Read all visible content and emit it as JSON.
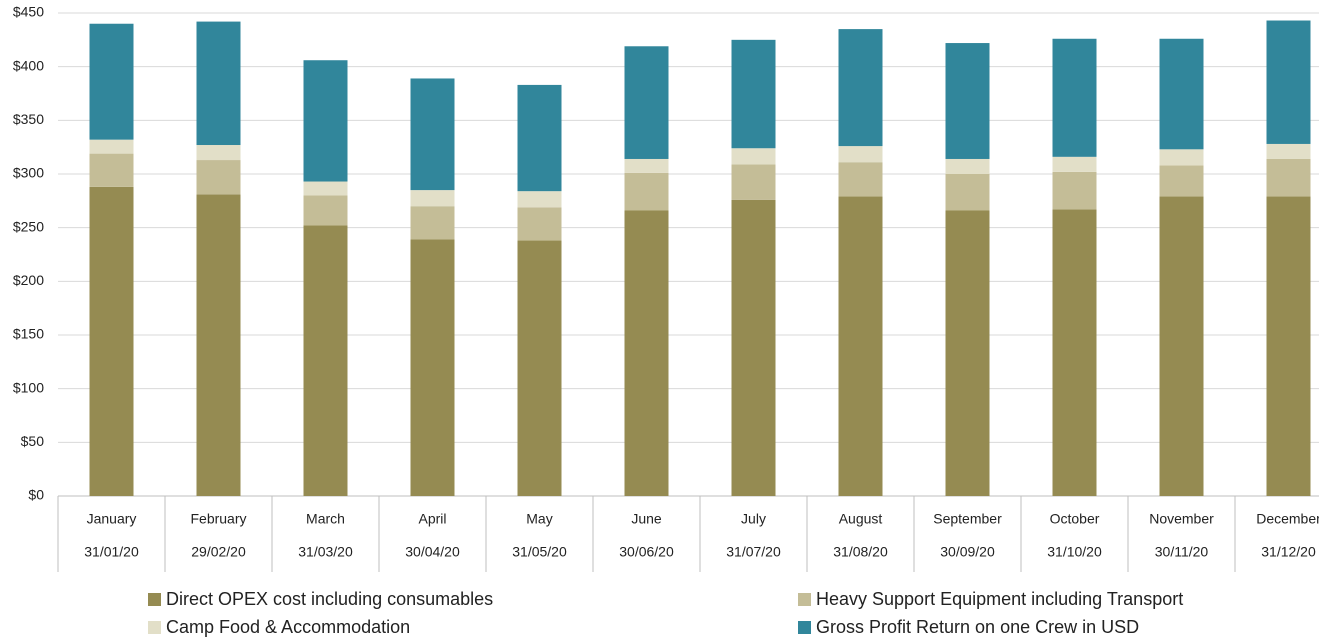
{
  "chart_data": {
    "type": "stacked_bar",
    "categories": [
      "January",
      "February",
      "March",
      "April",
      "May",
      "June",
      "July",
      "August",
      "September",
      "October",
      "November",
      "December"
    ],
    "dates": [
      "31/01/20",
      "29/02/20",
      "31/03/20",
      "30/04/20",
      "31/05/20",
      "30/06/20",
      "31/07/20",
      "31/08/20",
      "30/09/20",
      "31/10/20",
      "30/11/20",
      "31/12/20"
    ],
    "series": [
      {
        "name": "Direct OPEX cost including consumables",
        "color": "#958b52",
        "values": [
          288,
          281,
          252,
          239,
          238,
          266,
          276,
          279,
          266,
          267,
          279,
          279
        ]
      },
      {
        "name": "Heavy Support Equipment including Transport",
        "color": "#c4bd97",
        "values": [
          31,
          32,
          28,
          31,
          31,
          35,
          33,
          32,
          34,
          35,
          29,
          35
        ]
      },
      {
        "name": "Camp Food & Accommodation",
        "color": "#e2dfc8",
        "values": [
          13,
          14,
          13,
          15,
          15,
          13,
          15,
          15,
          14,
          14,
          15,
          14
        ]
      },
      {
        "name": "Gross Profit Return on one Crew in USD",
        "color": "#31869b",
        "values": [
          108,
          115,
          113,
          104,
          99,
          105,
          101,
          109,
          108,
          110,
          103,
          115
        ]
      }
    ],
    "ylim": [
      0,
      450
    ],
    "yticks": [
      {
        "value": 0,
        "label": "$0"
      },
      {
        "value": 50,
        "label": "$50"
      },
      {
        "value": 100,
        "label": "$100"
      },
      {
        "value": 150,
        "label": "$150"
      },
      {
        "value": 200,
        "label": "$200"
      },
      {
        "value": 250,
        "label": "$250"
      },
      {
        "value": 300,
        "label": "$300"
      },
      {
        "value": 350,
        "label": "$350"
      },
      {
        "value": 400,
        "label": "$400"
      },
      {
        "value": 450,
        "label": "$450"
      }
    ],
    "grid": true
  }
}
